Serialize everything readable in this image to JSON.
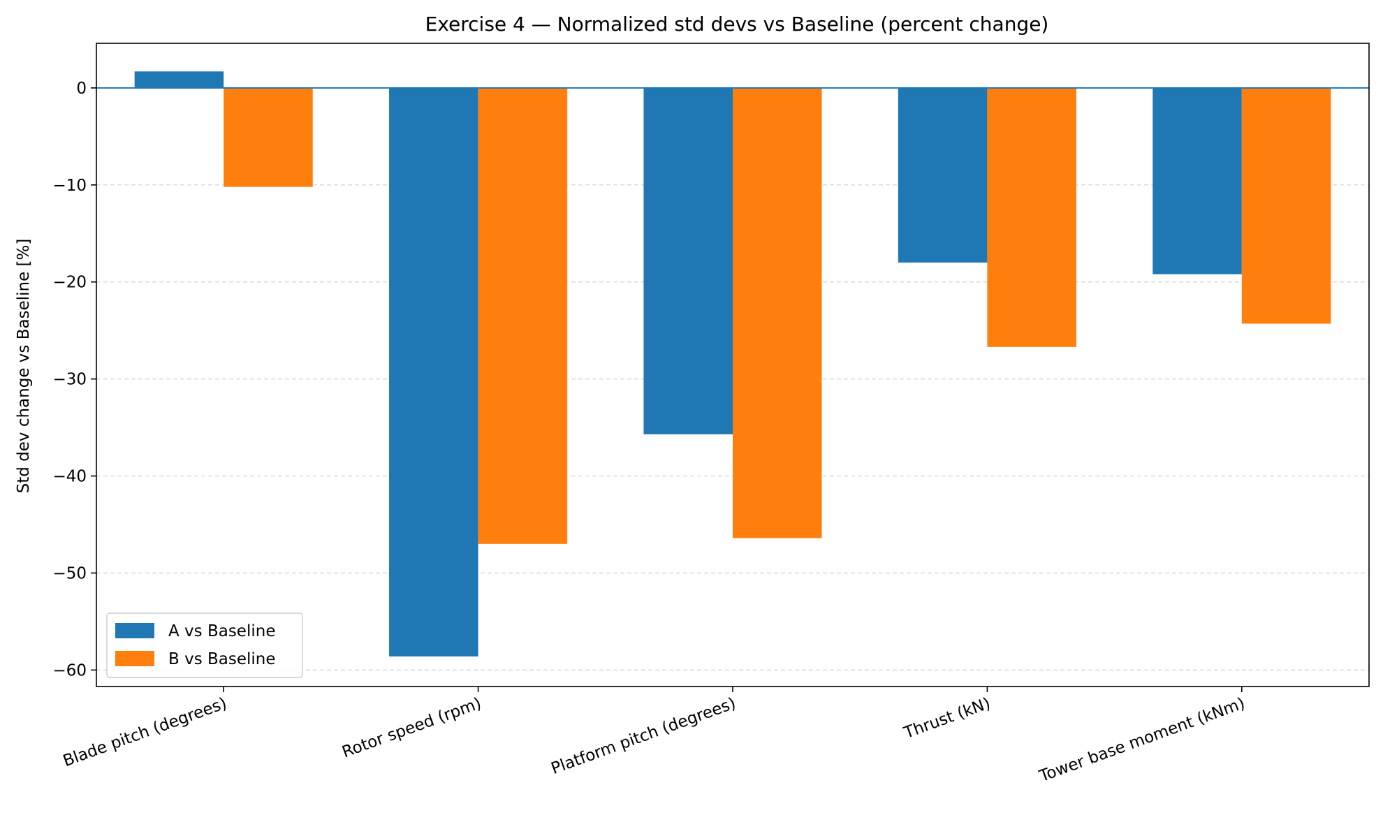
{
  "chart_data": {
    "type": "bar",
    "title": "Exercise 4 — Normalized std devs vs Baseline (percent change)",
    "xlabel": "",
    "ylabel": "Std dev change vs Baseline [%]",
    "categories": [
      "Blade pitch (degrees)",
      "Rotor speed (rpm)",
      "Platform pitch (degrees)",
      "Thrust (kN)",
      "Tower base moment (kNm)"
    ],
    "series": [
      {
        "name": "A vs Baseline",
        "color": "#1f77b4",
        "values": [
          1.7,
          -58.6,
          -35.7,
          -18.0,
          -19.2
        ]
      },
      {
        "name": "B vs Baseline",
        "color": "#ff7f0e",
        "values": [
          -10.2,
          -47.0,
          -46.4,
          -26.7,
          -24.3
        ]
      }
    ],
    "ylim": [
      -61.7,
      4.6
    ],
    "yticks": [
      0,
      -10,
      -20,
      -30,
      -40,
      -50,
      -60
    ],
    "ytick_labels": [
      "0",
      "−10",
      "−20",
      "−30",
      "−40",
      "−50",
      "−60"
    ],
    "zero_line": true,
    "zero_line_color": "#1f77b4",
    "grid": "y-dashed",
    "legend_position": "lower-left"
  }
}
